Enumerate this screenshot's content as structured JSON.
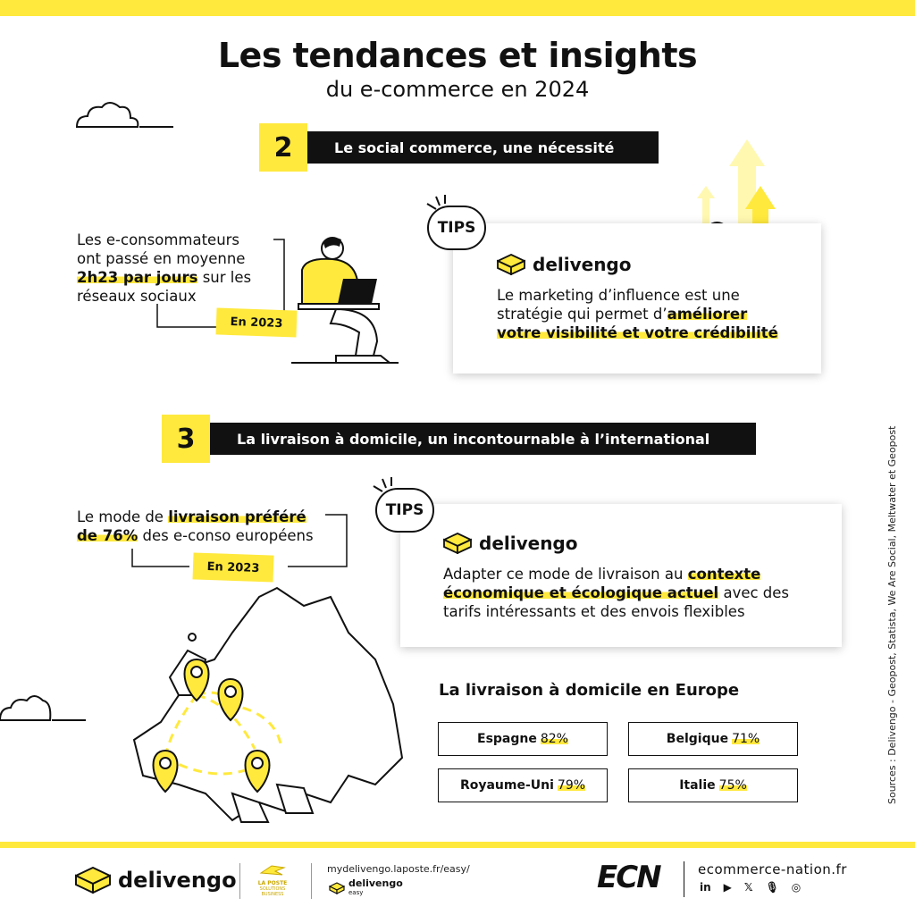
{
  "header": {
    "title": "Les tendances et insights",
    "subtitle": "du e-commerce en 2024"
  },
  "section2": {
    "number": "2",
    "heading": "Le social commerce, une nécessité",
    "stat_line1": "Les e-consommateurs",
    "stat_line2": "ont passé en moyenne",
    "stat_highlight": "2h23 par jours",
    "stat_line3_rest": " sur les",
    "stat_line4": "réseaux sociaux",
    "year_tag": "En 2023",
    "tips_label": "TIPS",
    "brand": "delivengo",
    "tip_line1": "Le marketing d’influence est une",
    "tip_line2_pre": "stratégie qui permet d’",
    "tip_line2_hl": "améliorer",
    "tip_line3_hl": "votre visibilité et votre crédibilité"
  },
  "section3": {
    "number": "3",
    "heading": "La livraison à domicile, un incontournable à l’international",
    "stat_pre": "Le mode de ",
    "stat_hl1": "livraison préféré",
    "stat_hl2": "de 76%",
    "stat_post": " des e-conso européens",
    "year_tag": "En 2023",
    "tips_label": "TIPS",
    "brand": "delivengo",
    "tip_line1_pre": "Adapter ce mode de livraison au ",
    "tip_line1_hl": "contexte",
    "tip_line2_hl": "économique et écologique actuel",
    "tip_line2_post": " avec des",
    "tip_line3": "tarifs intéressants et des envois flexibles"
  },
  "europe": {
    "title": "La livraison à domicile en Europe",
    "countries": [
      {
        "name": "Espagne",
        "pct": "82%"
      },
      {
        "name": "Belgique",
        "pct": "71%"
      },
      {
        "name": "Royaume-Uni",
        "pct": "79%"
      },
      {
        "name": "Italie",
        "pct": "75%"
      }
    ]
  },
  "sources": "Sources : Delivengo   -   Geopost, Statista, We Are Social, Meltwater et Geopost",
  "footer": {
    "brand": "delivengo",
    "laposte_line1": "LA POSTE",
    "laposte_line2": "SOLUTIONS",
    "laposte_line3": "BUSINESS",
    "url": "mydelivengo.laposte.fr/easy/",
    "brand_small": "delivengo",
    "brand_small_sub": "easy",
    "ecn": "ECN",
    "site": "ecommerce-nation.fr",
    "social": [
      "in",
      "▶",
      "𝕏",
      "🎙",
      "◎"
    ]
  },
  "colors": {
    "accent": "#ffe93d",
    "dark": "#111111"
  }
}
